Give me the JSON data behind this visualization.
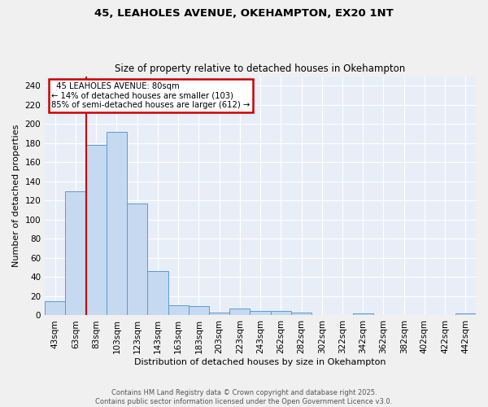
{
  "title1": "45, LEAHOLES AVENUE, OKEHAMPTON, EX20 1NT",
  "title2": "Size of property relative to detached houses in Okehampton",
  "xlabel": "Distribution of detached houses by size in Okehampton",
  "ylabel": "Number of detached properties",
  "annotation_line1": "  45 LEAHOLES AVENUE: 80sqm",
  "annotation_line2": "← 14% of detached houses are smaller (103)",
  "annotation_line3": "85% of semi-detached houses are larger (612) →",
  "bar_labels": [
    "43sqm",
    "63sqm",
    "83sqm",
    "103sqm",
    "123sqm",
    "143sqm",
    "163sqm",
    "183sqm",
    "203sqm",
    "223sqm",
    "243sqm",
    "262sqm",
    "282sqm",
    "302sqm",
    "322sqm",
    "342sqm",
    "362sqm",
    "382sqm",
    "402sqm",
    "422sqm",
    "442sqm"
  ],
  "bar_values": [
    15,
    130,
    178,
    192,
    117,
    46,
    11,
    10,
    3,
    7,
    5,
    5,
    3,
    0,
    0,
    2,
    0,
    0,
    0,
    0,
    2
  ],
  "bar_color": "#c5d9f0",
  "bar_edge_color": "#5b9bd5",
  "vline_index": 1.5,
  "annotation_box_color": "#ffffff",
  "annotation_box_edge": "#cc0000",
  "vline_color": "#cc0000",
  "bg_color": "#e8eef8",
  "grid_color": "#ffffff",
  "footer_text": "Contains HM Land Registry data © Crown copyright and database right 2025.\nContains public sector information licensed under the Open Government Licence v3.0.",
  "ylim": [
    0,
    250
  ],
  "yticks": [
    0,
    20,
    40,
    60,
    80,
    100,
    120,
    140,
    160,
    180,
    200,
    220,
    240
  ]
}
